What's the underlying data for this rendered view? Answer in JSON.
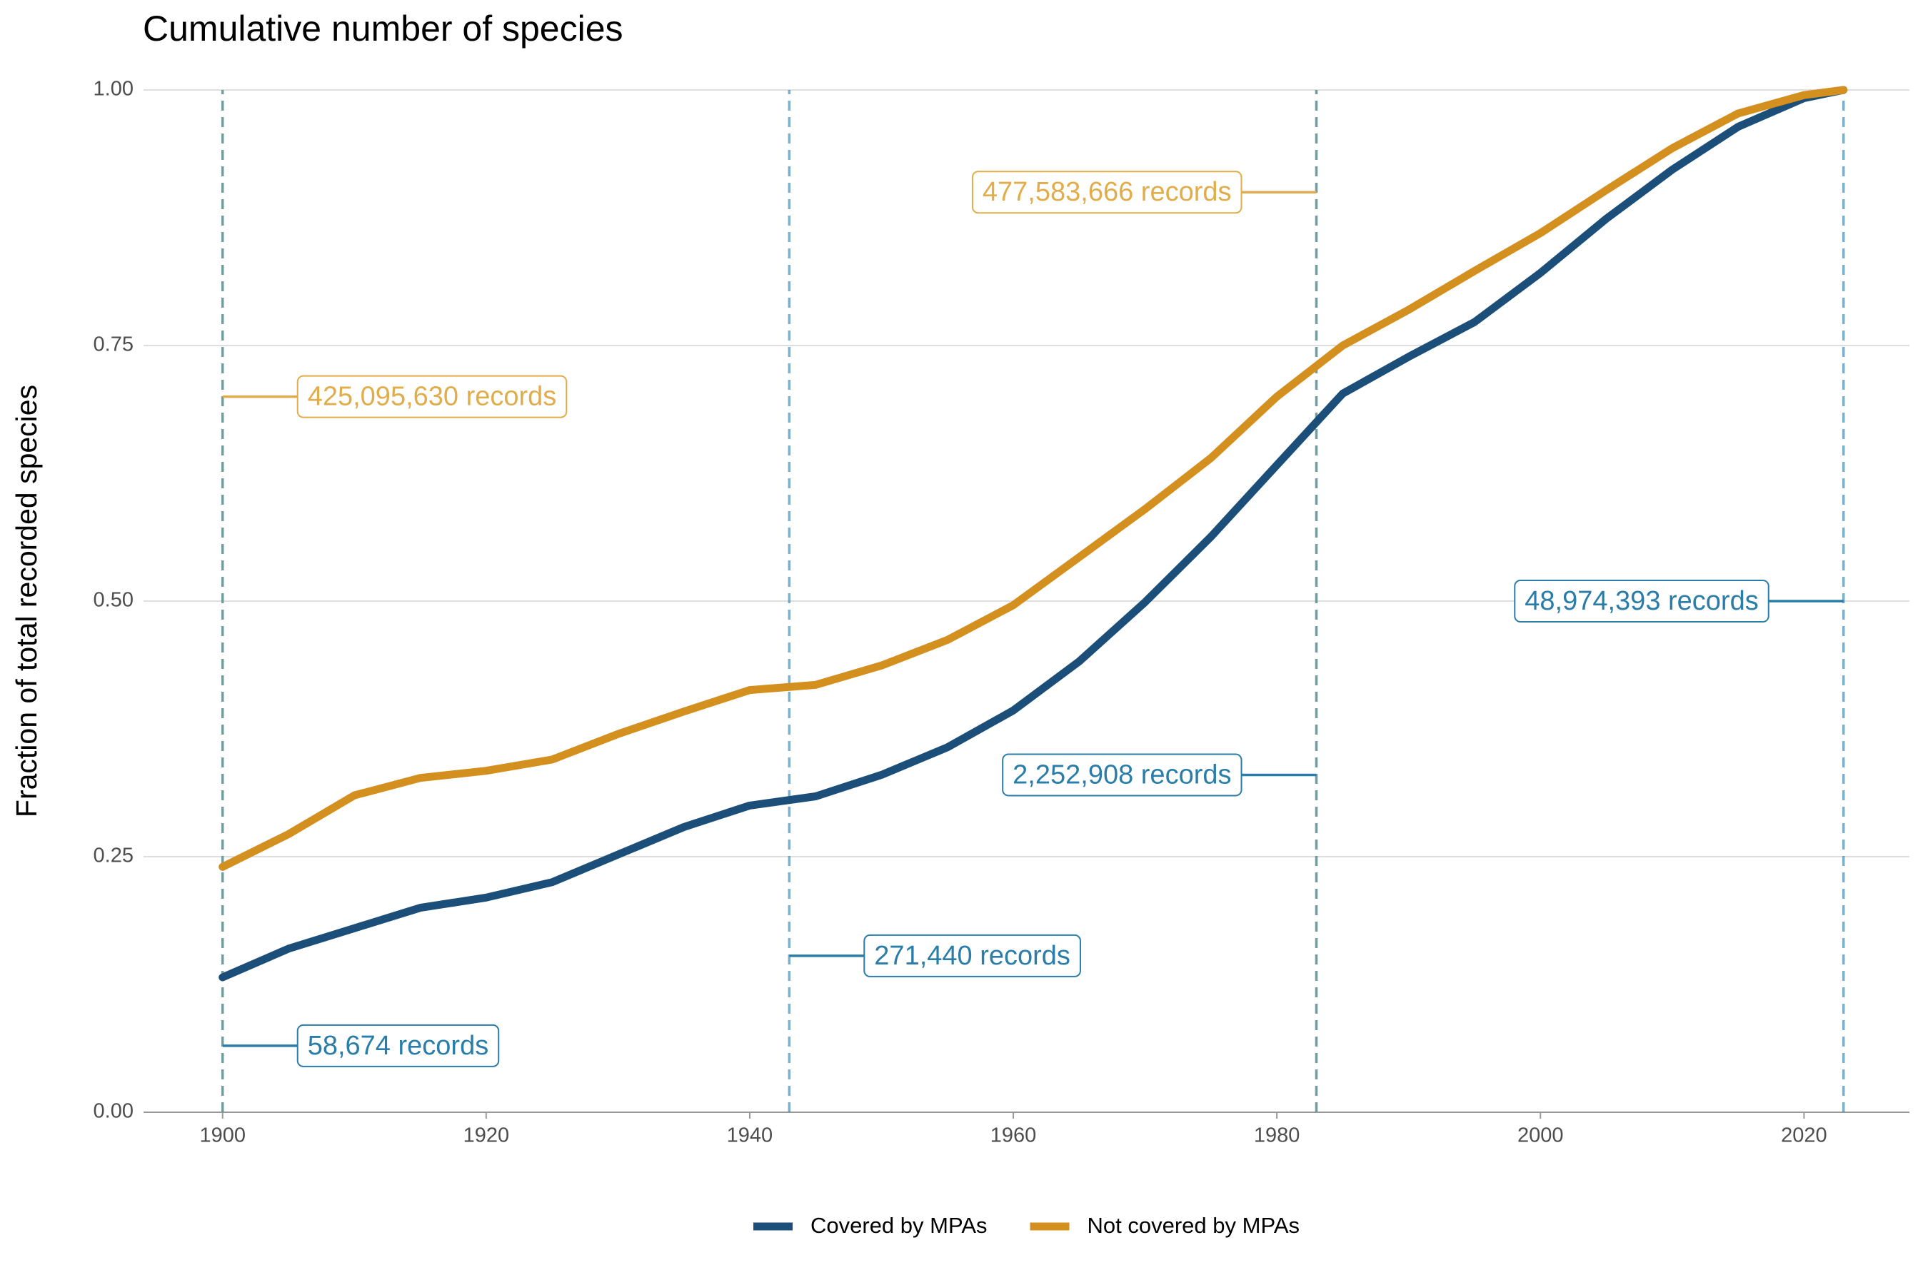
{
  "chart_data": {
    "type": "line",
    "title": "Cumulative number of species",
    "y_label": "Fraction of total recorded species",
    "x": [
      1900,
      1905,
      1910,
      1915,
      1920,
      1925,
      1930,
      1935,
      1940,
      1945,
      1950,
      1955,
      1960,
      1965,
      1970,
      1975,
      1980,
      1985,
      1990,
      1995,
      2000,
      2005,
      2010,
      2015,
      2020,
      2023
    ],
    "series": [
      {
        "name": "Covered by MPAs",
        "color": "#1b4e79",
        "annotation_color": "#2a7da8",
        "values": [
          0.132,
          0.16,
          0.18,
          0.2,
          0.21,
          0.225,
          0.252,
          0.279,
          0.3,
          0.309,
          0.33,
          0.357,
          0.393,
          0.441,
          0.499,
          0.563,
          0.633,
          0.703,
          0.739,
          0.773,
          0.821,
          0.874,
          0.922,
          0.964,
          0.992,
          1.0
        ]
      },
      {
        "name": "Not covered by MPAs",
        "color": "#d4901e",
        "annotation_color": "#e0ad4a",
        "values": [
          0.24,
          0.272,
          0.31,
          0.327,
          0.334,
          0.345,
          0.37,
          0.392,
          0.413,
          0.418,
          0.437,
          0.462,
          0.496,
          0.543,
          0.59,
          0.64,
          0.7,
          0.75,
          0.785,
          0.823,
          0.86,
          0.902,
          0.943,
          0.977,
          0.995,
          1.0
        ]
      }
    ],
    "annotations": [
      {
        "series": 1,
        "x": 1900,
        "y": 0.7,
        "label": "425,095,630 records"
      },
      {
        "series": 1,
        "x": 1983,
        "y": 0.9,
        "label": "477,583,666 records"
      },
      {
        "series": 0,
        "x": 1900,
        "y": 0.065,
        "label": "58,674 records"
      },
      {
        "series": 0,
        "x": 1943,
        "y": 0.153,
        "label": "271,440 records"
      },
      {
        "series": 0,
        "x": 1983,
        "y": 0.33,
        "label": "2,252,908 records"
      },
      {
        "series": 0,
        "x": 2023,
        "y": 0.5,
        "label": "48,974,393 records"
      }
    ],
    "xlim": [
      1894,
      2028
    ],
    "ylim": [
      0,
      1
    ],
    "xticks": [
      1900,
      1920,
      1940,
      1960,
      1980,
      2000,
      2020
    ],
    "yticks": [
      {
        "value": 0,
        "label": "0.00"
      },
      {
        "value": 0.25,
        "label": "0.25"
      },
      {
        "value": 0.5,
        "label": "0.50"
      },
      {
        "value": 0.75,
        "label": "0.75"
      },
      {
        "value": 1,
        "label": "1.00"
      }
    ],
    "grid": true,
    "legend": "bottom"
  }
}
